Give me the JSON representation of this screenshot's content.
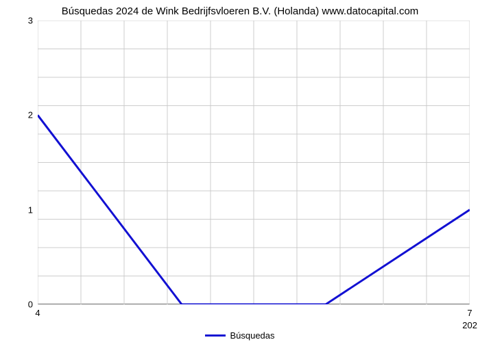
{
  "chart": {
    "type": "line",
    "title": "Búsquedas 2024 de Wink Bedrijfsvloeren B.V. (Holanda) www.datocapital.com",
    "title_fontsize": 15,
    "background_color": "#ffffff",
    "grid_color": "#cccccc",
    "axis_color": "#000000",
    "x": {
      "domain_min": 4,
      "domain_max": 7,
      "ticks": [
        4,
        7
      ],
      "minor_tick_marks": [
        5,
        6
      ],
      "minor_label": "202",
      "grid_lines": [
        4,
        4.3,
        4.6,
        4.9,
        5.2,
        5.5,
        5.8,
        6.1,
        6.4,
        6.7,
        7.0
      ]
    },
    "y": {
      "domain_min": 0,
      "domain_max": 3,
      "ticks": [
        0,
        1,
        2,
        3
      ],
      "grid_lines": [
        0,
        0.3,
        0.6,
        0.9,
        1.2,
        1.5,
        1.8,
        2.1,
        2.4,
        2.7,
        3.0
      ]
    },
    "series": {
      "name": "Búsquedas",
      "color": "#1210d2",
      "line_width": 3,
      "points": [
        {
          "x": 4.0,
          "y": 2.0
        },
        {
          "x": 5.0,
          "y": 0.0
        },
        {
          "x": 6.0,
          "y": 0.0
        },
        {
          "x": 7.0,
          "y": 1.0
        }
      ]
    }
  }
}
